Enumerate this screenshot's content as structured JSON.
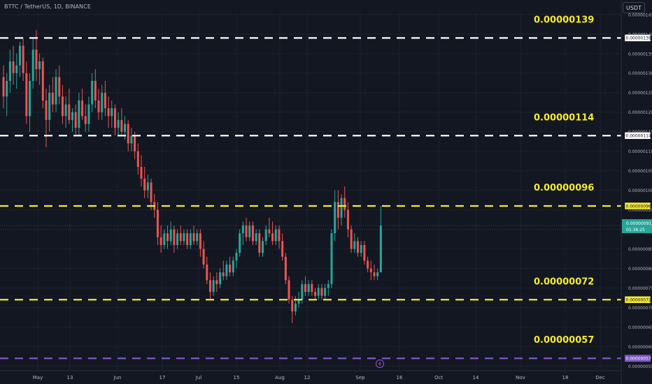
{
  "header": {
    "symbol": "BTTC / TetherUS, 1D, BINANCE",
    "currency": "USDT"
  },
  "chart_data": {
    "type": "candlestick",
    "title": "BTTC / TetherUS, 1D, BINANCE",
    "ylim": [
      5.4e-07,
      1.455e-06
    ],
    "y_ticks": [
      "0.00000145",
      "0.00000140",
      "0.00000135",
      "0.00000130",
      "0.00000125",
      "0.00000120",
      "0.00000115",
      "0.00000110",
      "0.00000105",
      "0.00000100",
      "0.00000095",
      "0.00000090",
      "0.00000085",
      "0.00000080",
      "0.00000075",
      "0.00000070",
      "0.00000065",
      "0.00000060",
      "0.00000055"
    ],
    "x_ticks": [
      "May",
      "13",
      "Jun",
      "17",
      "Jul",
      "15",
      "Aug",
      "12",
      "Sep",
      "16",
      "Oct",
      "14",
      "Nov",
      "18",
      "Dec"
    ],
    "candles": [
      [
        1.29e-06,
        1.32e-06,
        1.21e-06,
        1.24e-06
      ],
      [
        1.24e-06,
        1.3e-06,
        1.19e-06,
        1.28e-06
      ],
      [
        1.28e-06,
        1.36e-06,
        1.25e-06,
        1.33e-06
      ],
      [
        1.33e-06,
        1.37e-06,
        1.27e-06,
        1.3e-06
      ],
      [
        1.3e-06,
        1.35e-06,
        1.26e-06,
        1.32e-06
      ],
      [
        1.32e-06,
        1.38e-06,
        1.29e-06,
        1.37e-06
      ],
      [
        1.37e-06,
        1.39e-06,
        1.28e-06,
        1.3e-06
      ],
      [
        1.3e-06,
        1.33e-06,
        1.17e-06,
        1.19e-06
      ],
      [
        1.19e-06,
        1.3e-06,
        1.15e-06,
        1.28e-06
      ],
      [
        1.28e-06,
        1.39e-06,
        1.26e-06,
        1.36e-06
      ],
      [
        1.36e-06,
        1.41e-06,
        1.28e-06,
        1.31e-06
      ],
      [
        1.31e-06,
        1.35e-06,
        1.27e-06,
        1.33e-06
      ],
      [
        1.33e-06,
        1.34e-06,
        1.21e-06,
        1.23e-06
      ],
      [
        1.23e-06,
        1.26e-06,
        1.11e-06,
        1.18e-06
      ],
      [
        1.18e-06,
        1.27e-06,
        1.15e-06,
        1.25e-06
      ],
      [
        1.25e-06,
        1.29e-06,
        1.2e-06,
        1.22e-06
      ],
      [
        1.22e-06,
        1.31e-06,
        1.2e-06,
        1.29e-06
      ],
      [
        1.29e-06,
        1.32e-06,
        1.22e-06,
        1.24e-06
      ],
      [
        1.24e-06,
        1.27e-06,
        1.17e-06,
        1.19e-06
      ],
      [
        1.19e-06,
        1.24e-06,
        1.16e-06,
        1.22e-06
      ],
      [
        1.22e-06,
        1.26e-06,
        1.17e-06,
        1.18e-06
      ],
      [
        1.18e-06,
        1.21e-06,
        1.15e-06,
        1.2e-06
      ],
      [
        1.2e-06,
        1.22e-06,
        1.14e-06,
        1.16e-06
      ],
      [
        1.16e-06,
        1.25e-06,
        1.14e-06,
        1.23e-06
      ],
      [
        1.23e-06,
        1.26e-06,
        1.18e-06,
        1.19e-06
      ],
      [
        1.19e-06,
        1.22e-06,
        1.15e-06,
        1.17e-06
      ],
      [
        1.17e-06,
        1.24e-06,
        1.15e-06,
        1.22e-06
      ],
      [
        1.22e-06,
        1.3e-06,
        1.2e-06,
        1.28e-06
      ],
      [
        1.28e-06,
        1.31e-06,
        1.21e-06,
        1.23e-06
      ],
      [
        1.23e-06,
        1.26e-06,
        1.18e-06,
        1.2e-06
      ],
      [
        1.2e-06,
        1.27e-06,
        1.18e-06,
        1.25e-06
      ],
      [
        1.25e-06,
        1.28e-06,
        1.19e-06,
        1.21e-06
      ],
      [
        1.21e-06,
        1.24e-06,
        1.16e-06,
        1.19e-06
      ],
      [
        1.19e-06,
        1.23e-06,
        1.16e-06,
        1.21e-06
      ],
      [
        1.21e-06,
        1.22e-06,
        1.14e-06,
        1.16e-06
      ],
      [
        1.16e-06,
        1.2e-06,
        1.14e-06,
        1.18e-06
      ],
      [
        1.18e-06,
        1.21e-06,
        1.14e-06,
        1.15e-06
      ],
      [
        1.15e-06,
        1.19e-06,
        1.13e-06,
        1.17e-06
      ],
      [
        1.17e-06,
        1.18e-06,
        1.1e-06,
        1.12e-06
      ],
      [
        1.12e-06,
        1.16e-06,
        1.1e-06,
        1.14e-06
      ],
      [
        1.14e-06,
        1.15e-06,
        1.08e-06,
        1.1e-06
      ],
      [
        1.1e-06,
        1.12e-06,
        1.04e-06,
        1.06e-06
      ],
      [
        1.06e-06,
        1.09e-06,
        1.01e-06,
        1.03e-06
      ],
      [
        1.03e-06,
        1.06e-06,
        9.8e-07,
        1e-06
      ],
      [
        1e-06,
        1.04e-06,
        9.8e-07,
        1.02e-06
      ],
      [
        1.02e-06,
        1.03e-06,
        9.5e-07,
        9.7e-07
      ],
      [
        9.7e-07,
        9.9e-07,
        9.3e-07,
        9.5e-07
      ],
      [
        9.5e-07,
        9.7e-07,
        8.6e-07,
        8.8e-07
      ],
      [
        8.8e-07,
        9.1e-07,
        8.4e-07,
        8.6e-07
      ],
      [
        8.6e-07,
        9e-07,
        8.5e-07,
        8.9e-07
      ],
      [
        8.9e-07,
        9.1e-07,
        8.5e-07,
        8.7e-07
      ],
      [
        8.7e-07,
        9.2e-07,
        8.6e-07,
        9e-07
      ],
      [
        9e-07,
        9.1e-07,
        8.4e-07,
        8.6e-07
      ],
      [
        8.6e-07,
        9e-07,
        8.5e-07,
        8.9e-07
      ],
      [
        8.9e-07,
        9.1e-07,
        8.6e-07,
        8.7e-07
      ],
      [
        8.7e-07,
        9e-07,
        8.6e-07,
        8.9e-07
      ],
      [
        8.9e-07,
        9e-07,
        8.5e-07,
        8.6e-07
      ],
      [
        8.6e-07,
        9e-07,
        8.5e-07,
        8.9e-07
      ],
      [
        8.9e-07,
        9.1e-07,
        8.6e-07,
        8.7e-07
      ],
      [
        8.7e-07,
        9e-07,
        8.6e-07,
        8.9e-07
      ],
      [
        8.9e-07,
        9e-07,
        8.3e-07,
        8.5e-07
      ],
      [
        8.5e-07,
        8.7e-07,
        8e-07,
        8.1e-07
      ],
      [
        8.1e-07,
        8.3e-07,
        7.6e-07,
        7.7e-07
      ],
      [
        7.7e-07,
        7.9e-07,
        7.2e-07,
        7.4e-07
      ],
      [
        7.4e-07,
        7.8e-07,
        7.3e-07,
        7.7e-07
      ],
      [
        7.7e-07,
        7.9e-07,
        7.4e-07,
        7.6e-07
      ],
      [
        7.6e-07,
        8e-07,
        7.5e-07,
        7.9e-07
      ],
      [
        7.9e-07,
        8.2e-07,
        7.7e-07,
        7.8e-07
      ],
      [
        7.8e-07,
        8.2e-07,
        7.7e-07,
        8.1e-07
      ],
      [
        8.1e-07,
        8.3e-07,
        7.8e-07,
        7.9e-07
      ],
      [
        7.9e-07,
        8.3e-07,
        7.8e-07,
        8.2e-07
      ],
      [
        8.2e-07,
        8.5e-07,
        8e-07,
        8.4e-07
      ],
      [
        8.4e-07,
        9e-07,
        8.3e-07,
        8.9e-07
      ],
      [
        8.9e-07,
        9.2e-07,
        8.6e-07,
        9.1e-07
      ],
      [
        9.1e-07,
        9.3e-07,
        8.7e-07,
        8.8e-07
      ],
      [
        8.8e-07,
        9.2e-07,
        8.7e-07,
        9.1e-07
      ],
      [
        9.1e-07,
        9.2e-07,
        8.6e-07,
        8.7e-07
      ],
      [
        8.7e-07,
        9e-07,
        8.6e-07,
        8.9e-07
      ],
      [
        8.9e-07,
        9e-07,
        8.3e-07,
        8.4e-07
      ],
      [
        8.4e-07,
        8.8e-07,
        8.3e-07,
        8.7e-07
      ],
      [
        8.7e-07,
        9.1e-07,
        8.6e-07,
        9e-07
      ],
      [
        9e-07,
        9.3e-07,
        8.8e-07,
        8.9e-07
      ],
      [
        8.9e-07,
        9.2e-07,
        8.6e-07,
        8.7e-07
      ],
      [
        8.7e-07,
        9.1e-07,
        8.6e-07,
        9e-07
      ],
      [
        9e-07,
        9.1e-07,
        8.5e-07,
        8.7e-07
      ],
      [
        8.7e-07,
        8.9e-07,
        8.2e-07,
        8.3e-07
      ],
      [
        8.3e-07,
        8.4e-07,
        7.6e-07,
        7.7e-07
      ],
      [
        7.7e-07,
        7.8e-07,
        7.1e-07,
        7.2e-07
      ],
      [
        7.2e-07,
        7.3e-07,
        6.6e-07,
        6.9e-07
      ],
      [
        6.9e-07,
        7.3e-07,
        6.8e-07,
        7.1e-07
      ],
      [
        7.1e-07,
        7.4e-07,
        7e-07,
        7.2e-07
      ],
      [
        7.2e-07,
        7.7e-07,
        7.1e-07,
        7.6e-07
      ],
      [
        7.6e-07,
        7.8e-07,
        7.3e-07,
        7.4e-07
      ],
      [
        7.4e-07,
        7.7e-07,
        7.3e-07,
        7.6e-07
      ],
      [
        7.6e-07,
        7.7e-07,
        7.3e-07,
        7.4e-07
      ],
      [
        7.4e-07,
        7.5e-07,
        7.2e-07,
        7.3e-07
      ],
      [
        7.3e-07,
        7.6e-07,
        7.2e-07,
        7.5e-07
      ],
      [
        7.5e-07,
        7.6e-07,
        7.2e-07,
        7.3e-07
      ],
      [
        7.3e-07,
        7.6e-07,
        7.2e-07,
        7.5e-07
      ],
      [
        7.5e-07,
        7.7e-07,
        7.3e-07,
        7.6e-07
      ],
      [
        7.6e-07,
        9e-07,
        7.5e-07,
        8.9e-07
      ],
      [
        8.9e-07,
        1e-06,
        8.7e-07,
        9.7e-07
      ],
      [
        9.7e-07,
        1e-06,
        9e-07,
        9.3e-07
      ],
      [
        9.3e-07,
        9.9e-07,
        9.1e-07,
        9.8e-07
      ],
      [
        9.8e-07,
        1.01e-06,
        9.3e-07,
        9.5e-07
      ],
      [
        9.5e-07,
        9.7e-07,
        8.8e-07,
        9e-07
      ],
      [
        9e-07,
        9.1e-07,
        8.4e-07,
        8.5e-07
      ],
      [
        8.5e-07,
        8.9e-07,
        8.4e-07,
        8.7e-07
      ],
      [
        8.7e-07,
        8.8e-07,
        8.3e-07,
        8.4e-07
      ],
      [
        8.4e-07,
        8.7e-07,
        8.3e-07,
        8.6e-07
      ],
      [
        8.6e-07,
        8.7e-07,
        8.1e-07,
        8.2e-07
      ],
      [
        8.2e-07,
        8.3e-07,
        7.9e-07,
        8e-07
      ],
      [
        8e-07,
        8.2e-07,
        7.7e-07,
        7.9e-07
      ],
      [
        7.9e-07,
        8.1e-07,
        7.7e-07,
        7.8e-07
      ],
      [
        7.8e-07,
        8e-07,
        7.7e-07,
        7.9e-07
      ],
      [
        7.9e-07,
        9.6e-07,
        7.9e-07,
        9.1e-07
      ]
    ],
    "levels": [
      {
        "value": 1.39e-06,
        "label": "0.00000139",
        "color": "#ffffff"
      },
      {
        "value": 1.14e-06,
        "label": "0.00000114",
        "color": "#ffffff"
      },
      {
        "value": 9.6e-07,
        "label": "0.00000096",
        "color": "#f5e92f"
      },
      {
        "value": 7.2e-07,
        "label": "0.00000072",
        "color": "#f5e92f"
      },
      {
        "value": 5.7e-07,
        "label": "0.00000057",
        "color": "#7e57c2"
      }
    ],
    "current_price": {
      "value": 9.1e-07,
      "label": "0.00000091",
      "countdown": "01:36:25",
      "color": "#26a69a"
    },
    "colors": {
      "up": "#26a69a",
      "down": "#ef5350",
      "background": "#131722",
      "grid": "#1e222d",
      "axis_text": "#b2b5be"
    },
    "grid": true
  }
}
